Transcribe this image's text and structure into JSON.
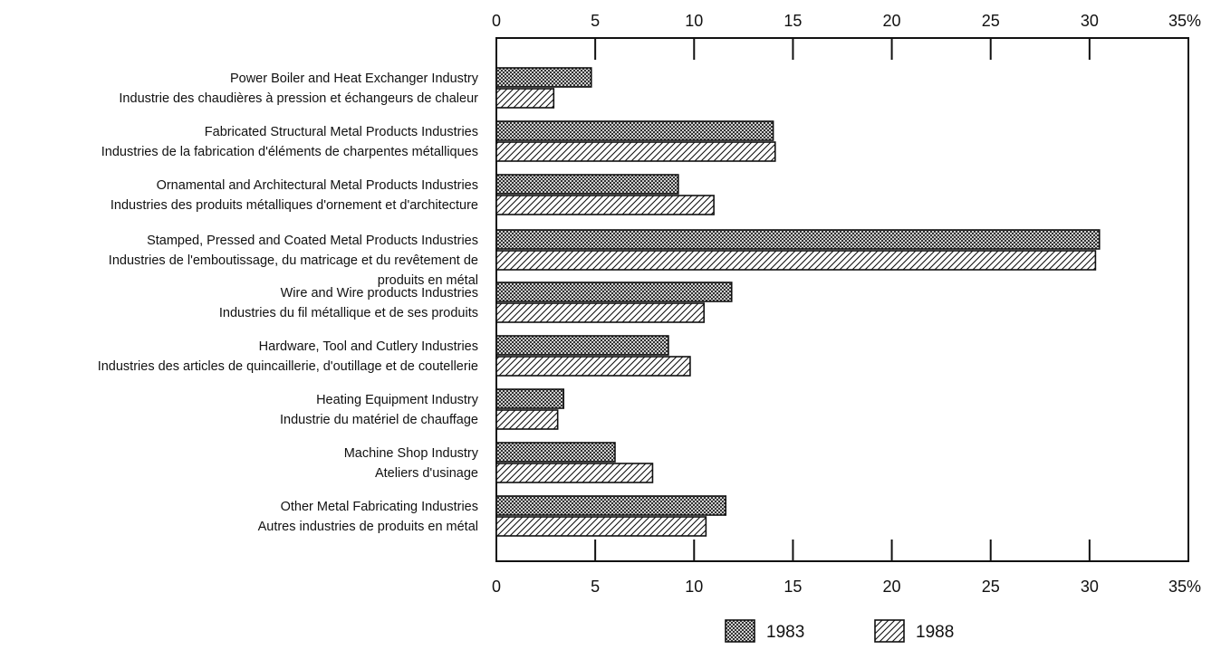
{
  "chart_data": {
    "type": "bar",
    "orientation": "horizontal",
    "title": "",
    "xlabel": "",
    "ylabel": "",
    "xlim": [
      0,
      35
    ],
    "x_ticks": [
      "0",
      "5",
      "10",
      "15",
      "20",
      "25",
      "30",
      "35%"
    ],
    "axis_position": "top and bottom",
    "grid": false,
    "legend_position": "bottom",
    "categories": [
      {
        "lines": [
          "Power Boiler and Heat Exchanger Industry",
          "Industrie des chaudières à pression et échangeurs de chaleur"
        ]
      },
      {
        "lines": [
          "Fabricated Structural Metal Products Industries",
          "Industries de la fabrication d'éléments de charpentes métalliques"
        ]
      },
      {
        "lines": [
          "Ornamental and Architectural Metal Products Industries",
          "Industries des produits métalliques d'ornement et d'architecture"
        ]
      },
      {
        "lines": [
          "Stamped, Pressed and Coated Metal Products Industries",
          "Industries de l'emboutissage, du matricage et du revêtement de",
          "produits en métal"
        ]
      },
      {
        "lines": [
          "Wire and Wire products Industries",
          "Industries du fil métallique et de ses produits"
        ]
      },
      {
        "lines": [
          "Hardware, Tool and Cutlery Industries",
          "Industries des articles de quincaillerie, d'outillage et de coutellerie"
        ]
      },
      {
        "lines": [
          "Heating Equipment Industry",
          "Industrie du matériel de chauffage"
        ]
      },
      {
        "lines": [
          "Machine Shop Industry",
          "Ateliers d'usinage"
        ]
      },
      {
        "lines": [
          "Other Metal Fabricating Industries",
          "Autres industries de produits en métal"
        ]
      }
    ],
    "series": [
      {
        "name": "1983",
        "pattern": "crosshatch",
        "values": [
          4.8,
          14.0,
          9.2,
          30.5,
          11.9,
          8.7,
          3.4,
          6.0,
          11.6
        ]
      },
      {
        "name": "1988",
        "pattern": "diagonal",
        "values": [
          2.9,
          14.1,
          11.0,
          30.3,
          10.5,
          9.8,
          3.1,
          7.9,
          10.6
        ]
      }
    ],
    "colors": {
      "ink": "#111111",
      "bar_fill": "#ffffff",
      "background": "#ffffff"
    }
  }
}
